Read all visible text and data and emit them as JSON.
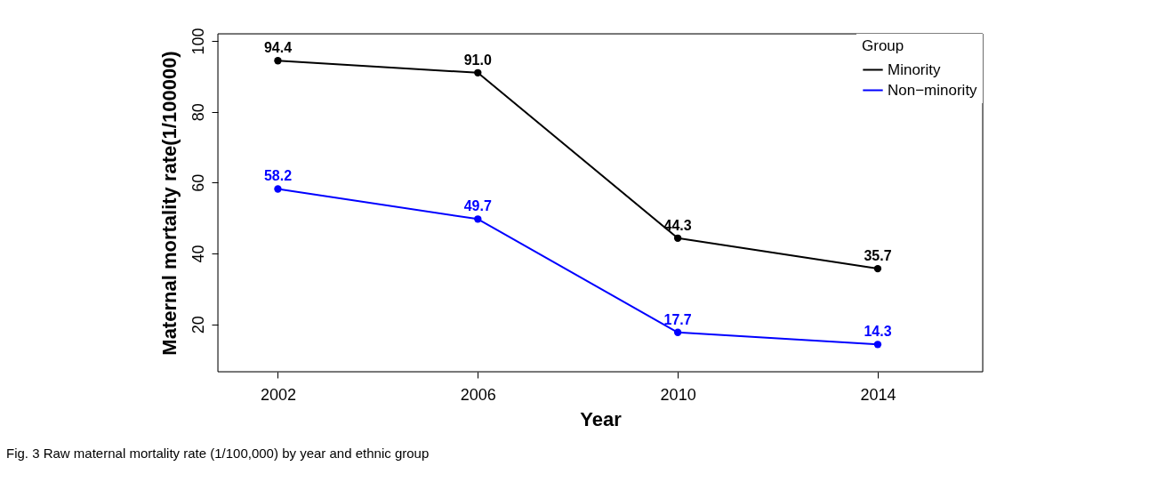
{
  "chart_data": {
    "type": "line",
    "xlabel": "Year",
    "ylabel": "Maternal mortality rate(1/100000)",
    "legend_title": "Group",
    "x": [
      2002,
      2006,
      2010,
      2014
    ],
    "series": [
      {
        "name": "Minority",
        "color": "#000000",
        "values": [
          94.4,
          91.0,
          44.3,
          35.7
        ]
      },
      {
        "name": "Non−minority",
        "color": "#0000ff",
        "values": [
          58.2,
          49.7,
          17.7,
          14.3
        ]
      }
    ],
    "value_labels": [
      [
        "94.4",
        "91.0",
        "44.3",
        "35.7"
      ],
      [
        "58.2",
        "49.7",
        "17.7",
        "14.3"
      ]
    ],
    "xlim": [
      2000.8,
      2016.1
    ],
    "xticks": [
      2002,
      2006,
      2010,
      2014
    ],
    "ylim": [
      6.6,
      102
    ],
    "yticks": [
      20,
      40,
      60,
      80,
      100
    ],
    "grid": false,
    "legend": "top right",
    "marker": "circle",
    "line_style": "solid",
    "annotations": [
      "Fig. 3 Raw maternal mortality rate (1/100,000) by year and ethnic group"
    ]
  }
}
